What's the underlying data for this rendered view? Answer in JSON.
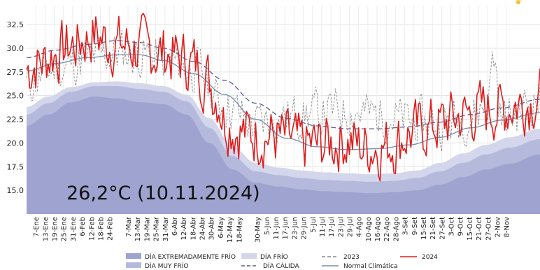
{
  "chart_data": {
    "type": "line",
    "ylim": [
      12.5,
      34.5
    ],
    "yticks": [
      "15.0",
      "17.5",
      "20.0",
      "22.5",
      "25.0",
      "27.5",
      "30.0",
      "32.5"
    ],
    "ytick_values": [
      15.0,
      17.5,
      20.0,
      22.5,
      25.0,
      27.5,
      30.0,
      32.5
    ],
    "x_range_days": [
      1,
      335
    ],
    "xticks": [
      {
        "label": "7-Ene",
        "day": 7
      },
      {
        "label": "13-Ene",
        "day": 13
      },
      {
        "label": "19-Ene",
        "day": 19
      },
      {
        "label": "25-Ene",
        "day": 25
      },
      {
        "label": "31-Ene",
        "day": 31
      },
      {
        "label": "6-Feb",
        "day": 37
      },
      {
        "label": "12-Feb",
        "day": 43
      },
      {
        "label": "18-Feb",
        "day": 49
      },
      {
        "label": "24-Feb",
        "day": 55
      },
      {
        "label": "7-Mar",
        "day": 67
      },
      {
        "label": "13-Mar",
        "day": 73
      },
      {
        "label": "19-Mar",
        "day": 79
      },
      {
        "label": "25-Mar",
        "day": 85
      },
      {
        "label": "31-Mar",
        "day": 91
      },
      {
        "label": "6-Abr",
        "day": 97
      },
      {
        "label": "12-Abr",
        "day": 103
      },
      {
        "label": "18-Abr",
        "day": 109
      },
      {
        "label": "24-Abr",
        "day": 115
      },
      {
        "label": "30-Abr",
        "day": 121
      },
      {
        "label": "6-May",
        "day": 127
      },
      {
        "label": "12-May",
        "day": 133
      },
      {
        "label": "18-May",
        "day": 139
      },
      {
        "label": "30-May",
        "day": 151
      },
      {
        "label": "5-Jun",
        "day": 157
      },
      {
        "label": "11-Jun",
        "day": 163
      },
      {
        "label": "17-Jun",
        "day": 169
      },
      {
        "label": "23-Jun",
        "day": 175
      },
      {
        "label": "29-Jun",
        "day": 181
      },
      {
        "label": "5-Jul",
        "day": 187
      },
      {
        "label": "11-Jul",
        "day": 193
      },
      {
        "label": "17-Jul",
        "day": 199
      },
      {
        "label": "23-Jul",
        "day": 205
      },
      {
        "label": "29-Jul",
        "day": 211
      },
      {
        "label": "4-Ago",
        "day": 217
      },
      {
        "label": "10-Ago",
        "day": 223
      },
      {
        "label": "16-Ago",
        "day": 229
      },
      {
        "label": "22-Ago",
        "day": 235
      },
      {
        "label": "28-Ago",
        "day": 241
      },
      {
        "label": "3-Set",
        "day": 247
      },
      {
        "label": "9-Set",
        "day": 253
      },
      {
        "label": "15-Set",
        "day": 259
      },
      {
        "label": "21-Set",
        "day": 265
      },
      {
        "label": "27-Set",
        "day": 271
      },
      {
        "label": "3-Oct",
        "day": 277
      },
      {
        "label": "9-Oct",
        "day": 283
      },
      {
        "label": "15-Oct",
        "day": 289
      },
      {
        "label": "21-Oct",
        "day": 295
      },
      {
        "label": "27-Oct",
        "day": 301
      },
      {
        "label": "2-Nov",
        "day": 307
      },
      {
        "label": "8-Nov",
        "day": 313
      }
    ],
    "bands": [
      {
        "name": "DÍA EXTREMADAMENTE FRÍO",
        "color": "#9ea3cf",
        "x": [
          1,
          15,
          30,
          45,
          60,
          75,
          90,
          105,
          120,
          135,
          150,
          165,
          180,
          195,
          210,
          225,
          240,
          255,
          270,
          285,
          300,
          315,
          335
        ],
        "values": [
          21.8,
          23.0,
          24.3,
          24.9,
          24.7,
          24.3,
          24.1,
          23.0,
          20.0,
          17.2,
          15.8,
          15.4,
          15.1,
          14.9,
          14.8,
          14.7,
          14.8,
          15.0,
          15.6,
          16.4,
          17.2,
          17.8,
          18.8
        ]
      },
      {
        "name": "DÍA MUY FRÍO",
        "color": "#b5b9dc",
        "x": [
          1,
          15,
          30,
          45,
          60,
          75,
          90,
          105,
          120,
          135,
          150,
          165,
          180,
          195,
          210,
          225,
          240,
          255,
          270,
          285,
          300,
          315,
          335
        ],
        "values": [
          23.0,
          24.2,
          25.4,
          26.0,
          26.0,
          25.7,
          25.4,
          24.4,
          21.6,
          18.6,
          17.0,
          16.6,
          16.3,
          16.1,
          16.0,
          15.9,
          16.0,
          16.3,
          17.0,
          17.9,
          18.8,
          19.5,
          20.4
        ]
      },
      {
        "name": "DÍA FRÍO",
        "color": "#d4d6ec",
        "x": [
          1,
          15,
          30,
          45,
          60,
          75,
          90,
          105,
          120,
          135,
          150,
          165,
          180,
          195,
          210,
          225,
          240,
          255,
          270,
          285,
          300,
          315,
          335
        ],
        "values": [
          23.8,
          24.9,
          25.9,
          26.4,
          26.5,
          26.3,
          26.0,
          25.1,
          22.6,
          19.6,
          17.9,
          17.4,
          17.1,
          16.9,
          16.8,
          16.7,
          16.8,
          17.1,
          17.9,
          18.9,
          19.8,
          20.6,
          21.5
        ]
      }
    ],
    "series": [
      {
        "name": "Normal Climática",
        "color": "#6f8fb0",
        "style": "solid",
        "x": [
          1,
          20,
          40,
          60,
          75,
          90,
          110,
          130,
          150,
          170,
          190,
          210,
          230,
          250,
          270,
          290,
          310,
          335
        ],
        "values": [
          27.6,
          28.4,
          29.0,
          29.3,
          29.3,
          28.7,
          27.3,
          25.1,
          22.5,
          20.5,
          19.6,
          19.3,
          19.4,
          19.8,
          20.6,
          21.6,
          22.4,
          23.2
        ]
      },
      {
        "name": "DÍA CÁLIDA",
        "color": "#5b5a8e",
        "style": "dashed",
        "x": [
          1,
          20,
          40,
          60,
          75,
          90,
          110,
          130,
          150,
          170,
          190,
          210,
          230,
          250,
          270,
          290,
          310,
          335
        ],
        "values": [
          29.0,
          29.8,
          30.4,
          30.8,
          30.6,
          30.0,
          28.6,
          26.6,
          24.2,
          22.6,
          21.8,
          21.5,
          21.5,
          21.7,
          22.2,
          23.0,
          23.7,
          24.6
        ]
      },
      {
        "name": "2023",
        "color": "#8a8a8a",
        "style": "dashed",
        "seed": 11,
        "x": [
          1,
          20,
          40,
          60,
          75,
          90,
          110,
          130,
          150,
          170,
          190,
          210,
          230,
          250,
          270,
          290,
          300,
          305,
          310,
          335
        ],
        "values": [
          26.2,
          27.8,
          28.8,
          29.6,
          29.4,
          28.6,
          27.9,
          24.0,
          22.0,
          22.8,
          23.2,
          23.4,
          23.0,
          22.3,
          22.0,
          22.8,
          24.0,
          29.0,
          22.5,
          24.6
        ],
        "noise": 1.4
      },
      {
        "name": "2024",
        "color": "#e01b1b",
        "style": "solid",
        "seed": 7,
        "x": [
          1,
          10,
          20,
          30,
          40,
          45,
          50,
          55,
          60,
          75,
          90,
          100,
          110,
          118,
          125,
          130,
          138,
          145,
          152,
          160,
          170,
          180,
          190,
          200,
          210,
          220,
          230,
          240,
          250,
          260,
          270,
          280,
          290,
          300,
          310,
          318,
          326,
          335
        ],
        "values": [
          27.8,
          28.6,
          29.5,
          30.2,
          31.0,
          31.5,
          31.0,
          30.6,
          30.4,
          30.0,
          29.5,
          29.0,
          28.3,
          26.9,
          25.0,
          22.5,
          21.5,
          21.0,
          20.9,
          20.7,
          20.4,
          19.8,
          19.8,
          20.1,
          20.3,
          19.6,
          19.6,
          20.0,
          21.0,
          21.6,
          22.0,
          22.7,
          23.1,
          23.6,
          23.6,
          24.1,
          24.4,
          25.0
        ],
        "noise": 1.8
      }
    ],
    "annotation": "26,2°C (10.11.2024)",
    "legend": [
      {
        "label": "DÍA EXTREMADAMENTE FRÍO",
        "kind": "patch",
        "color": "#9ea3cf"
      },
      {
        "label": "DÍA MUY FRÍO",
        "kind": "patch",
        "color": "#b5b9dc"
      },
      {
        "label": "DÍA FRÍO",
        "kind": "patch",
        "color": "#d4d6ec"
      },
      {
        "label": "DÍA CÁLIDA",
        "kind": "dashed",
        "color": "#5b5a8e"
      },
      {
        "label": "2023",
        "kind": "dashed",
        "color": "#8a8a8a"
      },
      {
        "label": "Normal Climática",
        "kind": "line",
        "color": "#6f8fb0"
      },
      {
        "label": "2024",
        "kind": "line",
        "color": "#e01b1b"
      }
    ],
    "legend_position": "bottom",
    "grid": true
  }
}
